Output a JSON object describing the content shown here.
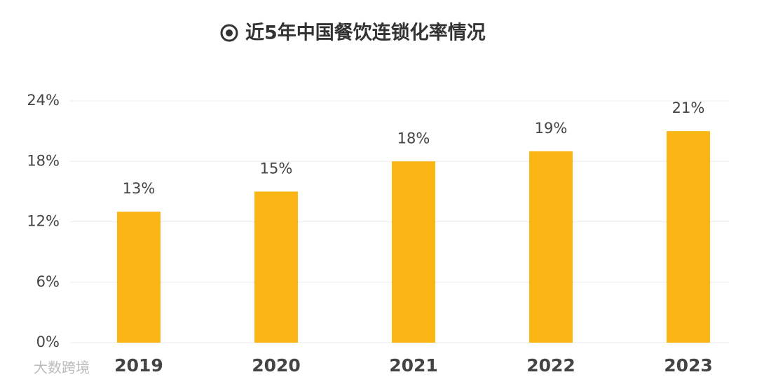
{
  "chart_data": {
    "type": "bar",
    "title": "近5年中国餐饮连锁化率情况",
    "categories": [
      "2019",
      "2020",
      "2021",
      "2022",
      "2023"
    ],
    "values": [
      13,
      15,
      18,
      19,
      21
    ],
    "value_labels": [
      "13%",
      "15%",
      "18%",
      "19%",
      "21%"
    ],
    "color": "#fbb515",
    "ylim": [
      0,
      24
    ],
    "yticks": [
      {
        "value": 0,
        "label": "0%"
      },
      {
        "value": 6,
        "label": "6%"
      },
      {
        "value": 12,
        "label": "12%"
      },
      {
        "value": 18,
        "label": "18%"
      },
      {
        "value": 24,
        "label": "24%"
      }
    ],
    "grid": true,
    "watermark": "大数跨境"
  }
}
